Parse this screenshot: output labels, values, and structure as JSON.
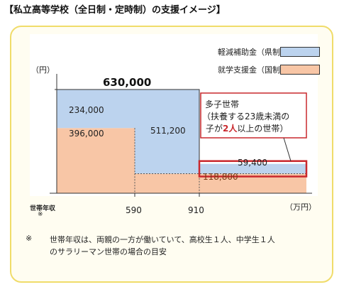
{
  "title": "【私立高等学校（全日制・定時制）の支援イメージ】",
  "colors": {
    "prefecture": "#bcd3ee",
    "national": "#f8c6a6",
    "highlight_border": "#c9282d",
    "highlight_text": "#c9282d",
    "frame_border": "#f0dc6a",
    "frame_bg": "#fffdf1",
    "chart_bg": "#ffffff"
  },
  "legend": [
    {
      "label": "軽減補助金（県制度）",
      "color": "#bcd3ee"
    },
    {
      "label": "就学支援金（国制度）",
      "color": "#f8c6a6"
    }
  ],
  "y_unit": "（円）",
  "x_unit": "（万円）",
  "x_axis_label_line1": "世帯年収",
  "x_axis_label_line2": "※",
  "total_label": "630,000",
  "chart_data": {
    "type": "step_stacked_area",
    "x_ticks": [
      "590",
      "910"
    ],
    "segments": [
      {
        "range": "〜590",
        "prefecture": 234000,
        "national": 396000,
        "prefecture_label": "234,000",
        "national_label": "396,000"
      },
      {
        "range": "590〜910",
        "prefecture": 511200,
        "national": 118800,
        "prefecture_label": "511,200",
        "national_label": ""
      },
      {
        "range": "910〜",
        "prefecture": 59400,
        "national": 118800,
        "prefecture_label": "59,400",
        "national_label": "118,800"
      }
    ]
  },
  "callout": {
    "line1": "多子世帯",
    "line2": "（扶養する23歳未満の",
    "line3_pre": "子が",
    "line3_red": "2人",
    "line3_post": "以上の世帯）"
  },
  "footnote": {
    "mark": "※",
    "line1": "世帯年収は、両親の一方が働いていて、高校生１人、中学生１人",
    "line2": "のサラリーマン世帯の場合の目安"
  }
}
